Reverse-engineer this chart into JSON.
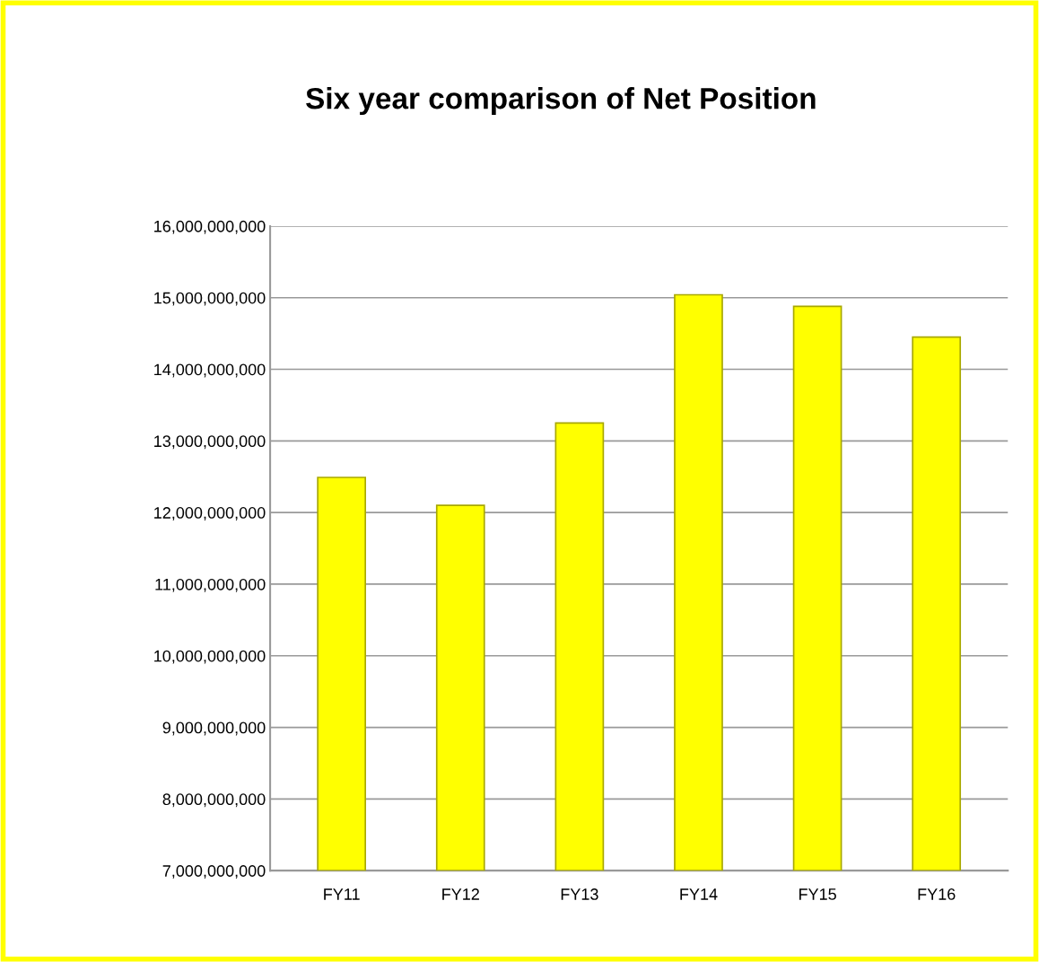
{
  "chart_data": {
    "type": "bar",
    "title": "Six year comparison of Net Position",
    "categories": [
      "FY11",
      "FY12",
      "FY13",
      "FY14",
      "FY15",
      "FY16"
    ],
    "values": [
      12490000000,
      12100000000,
      13250000000,
      15040000000,
      14880000000,
      14450000000
    ],
    "color": "#ffff00",
    "ylim": [
      7000000000,
      16000000000
    ],
    "yticks": [
      {
        "value": 7000000000,
        "label": "7,000,000,000"
      },
      {
        "value": 8000000000,
        "label": "8,000,000,000"
      },
      {
        "value": 9000000000,
        "label": "9,000,000,000"
      },
      {
        "value": 10000000000,
        "label": "10,000,000,000"
      },
      {
        "value": 11000000000,
        "label": "11,000,000,000"
      },
      {
        "value": 12000000000,
        "label": "12,000,000,000"
      },
      {
        "value": 13000000000,
        "label": "13,000,000,000"
      },
      {
        "value": 14000000000,
        "label": "14,000,000,000"
      },
      {
        "value": 15000000000,
        "label": "15,000,000,000"
      },
      {
        "value": 16000000000,
        "label": "16,000,000,000"
      }
    ],
    "grid": "y",
    "legend": false
  }
}
